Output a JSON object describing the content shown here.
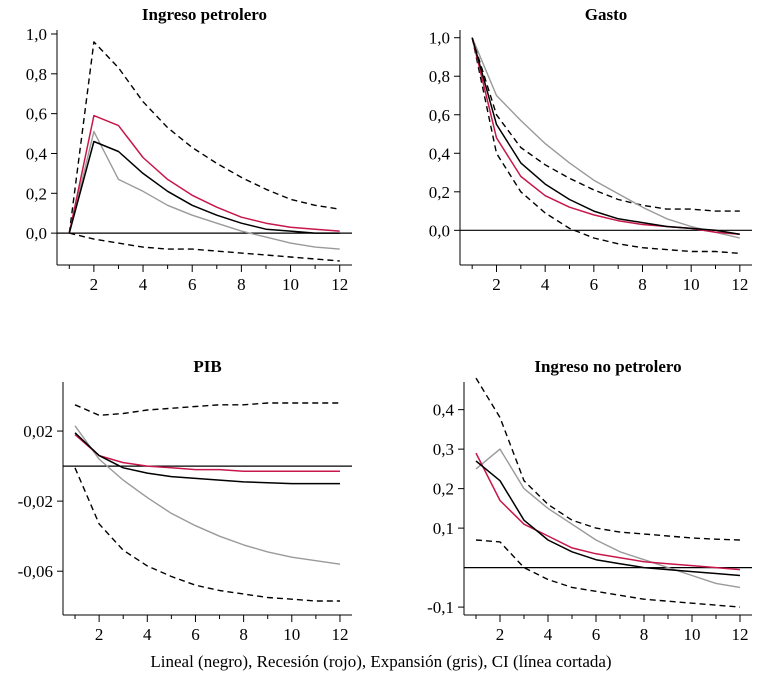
{
  "caption": "Lineal (negro), Recesión (rojo), Expansión (gris), CI (línea cortada)",
  "colors": {
    "lineal": "#000000",
    "recesion": "#c8174a",
    "expansion": "#9a9a9a",
    "ci": "#000000"
  },
  "chart_data": [
    {
      "type": "line",
      "title": "Ingreso petrolero",
      "xlim": [
        0.5,
        12.5
      ],
      "ylim": [
        -0.16,
        1.02
      ],
      "xticks": [
        2,
        4,
        6,
        8,
        10,
        12
      ],
      "yticks": [
        0.0,
        0.2,
        0.4,
        0.6,
        0.8,
        1.0
      ],
      "yticklabels": [
        "0,0",
        "0,2",
        "0,4",
        "0,6",
        "0,8",
        "1,0"
      ],
      "zero_line": true,
      "x": [
        1,
        2,
        3,
        4,
        5,
        6,
        7,
        8,
        9,
        10,
        11,
        12
      ],
      "series": [
        {
          "role": "ci_upper",
          "style": "dashed",
          "values": [
            0.0,
            0.96,
            0.83,
            0.66,
            0.53,
            0.43,
            0.35,
            0.28,
            0.22,
            0.17,
            0.14,
            0.12
          ]
        },
        {
          "role": "ci_lower",
          "style": "dashed",
          "values": [
            0.0,
            -0.03,
            -0.05,
            -0.07,
            -0.08,
            -0.08,
            -0.09,
            -0.1,
            -0.11,
            -0.12,
            -0.13,
            -0.14
          ]
        },
        {
          "role": "expansion",
          "values": [
            0.0,
            0.51,
            0.27,
            0.21,
            0.14,
            0.09,
            0.05,
            0.01,
            -0.02,
            -0.05,
            -0.07,
            -0.08
          ]
        },
        {
          "role": "recesion",
          "values": [
            0.0,
            0.59,
            0.54,
            0.38,
            0.27,
            0.19,
            0.13,
            0.08,
            0.05,
            0.03,
            0.02,
            0.01
          ]
        },
        {
          "role": "lineal",
          "values": [
            0.0,
            0.46,
            0.41,
            0.3,
            0.21,
            0.14,
            0.09,
            0.05,
            0.02,
            0.01,
            0.0,
            0.0
          ]
        }
      ]
    },
    {
      "type": "line",
      "title": "Gasto",
      "xlim": [
        0.5,
        12.5
      ],
      "ylim": [
        -0.18,
        1.04
      ],
      "xticks": [
        2,
        4,
        6,
        8,
        10,
        12
      ],
      "yticks": [
        0.0,
        0.2,
        0.4,
        0.6,
        0.8,
        1.0
      ],
      "yticklabels": [
        "0,0",
        "0,2",
        "0,4",
        "0,6",
        "0,8",
        "1,0"
      ],
      "zero_line": true,
      "x": [
        1,
        2,
        3,
        4,
        5,
        6,
        7,
        8,
        9,
        10,
        11,
        12
      ],
      "series": [
        {
          "role": "ci_upper",
          "style": "dashed",
          "values": [
            1.0,
            0.6,
            0.43,
            0.34,
            0.27,
            0.21,
            0.16,
            0.13,
            0.11,
            0.11,
            0.1,
            0.1
          ]
        },
        {
          "role": "ci_lower",
          "style": "dashed",
          "values": [
            1.0,
            0.4,
            0.2,
            0.09,
            0.01,
            -0.04,
            -0.07,
            -0.09,
            -0.1,
            -0.11,
            -0.11,
            -0.12
          ]
        },
        {
          "role": "expansion",
          "values": [
            1.0,
            0.7,
            0.57,
            0.45,
            0.35,
            0.26,
            0.19,
            0.12,
            0.06,
            0.02,
            -0.01,
            -0.04
          ]
        },
        {
          "role": "recesion",
          "values": [
            1.0,
            0.48,
            0.28,
            0.18,
            0.12,
            0.08,
            0.05,
            0.03,
            0.02,
            0.01,
            -0.01,
            -0.02
          ]
        },
        {
          "role": "lineal",
          "values": [
            1.0,
            0.55,
            0.35,
            0.24,
            0.16,
            0.1,
            0.06,
            0.04,
            0.02,
            0.01,
            0.0,
            -0.02
          ]
        }
      ]
    },
    {
      "type": "line",
      "title": "PIB",
      "xlim": [
        0.5,
        12.5
      ],
      "ylim": [
        -0.085,
        0.048
      ],
      "xticks": [
        2,
        4,
        6,
        8,
        10,
        12
      ],
      "yticks": [
        -0.06,
        -0.02,
        0.02
      ],
      "yticklabels": [
        "-0,06",
        "-0,02",
        "0,02"
      ],
      "zero_line": true,
      "x": [
        1,
        2,
        3,
        4,
        5,
        6,
        7,
        8,
        9,
        10,
        11,
        12
      ],
      "series": [
        {
          "role": "ci_upper",
          "style": "dashed",
          "values": [
            0.035,
            0.029,
            0.03,
            0.032,
            0.033,
            0.034,
            0.035,
            0.035,
            0.036,
            0.036,
            0.036,
            0.036
          ]
        },
        {
          "role": "ci_lower",
          "style": "dashed",
          "values": [
            -0.001,
            -0.033,
            -0.048,
            -0.057,
            -0.063,
            -0.068,
            -0.071,
            -0.073,
            -0.075,
            -0.076,
            -0.077,
            -0.077
          ]
        },
        {
          "role": "expansion",
          "values": [
            0.023,
            0.004,
            -0.008,
            -0.018,
            -0.027,
            -0.034,
            -0.04,
            -0.045,
            -0.049,
            -0.052,
            -0.054,
            -0.056
          ]
        },
        {
          "role": "recesion",
          "values": [
            0.018,
            0.006,
            0.002,
            0.0,
            -0.001,
            -0.002,
            -0.002,
            -0.003,
            -0.003,
            -0.003,
            -0.003,
            -0.003
          ]
        },
        {
          "role": "lineal",
          "values": [
            0.019,
            0.006,
            -0.001,
            -0.004,
            -0.006,
            -0.007,
            -0.008,
            -0.009,
            -0.0095,
            -0.01,
            -0.01,
            -0.01
          ]
        }
      ]
    },
    {
      "type": "line",
      "title": "Ingreso no petrolero",
      "xlim": [
        0.5,
        12.5
      ],
      "ylim": [
        -0.12,
        0.47
      ],
      "xticks": [
        2,
        4,
        6,
        8,
        10,
        12
      ],
      "yticks": [
        -0.1,
        0.1,
        0.2,
        0.3,
        0.4
      ],
      "yticklabels": [
        "-0,1",
        "0,1",
        "0,2",
        "0,3",
        "0,4"
      ],
      "zero_line": true,
      "x": [
        1,
        2,
        3,
        4,
        5,
        6,
        7,
        8,
        9,
        10,
        11,
        12
      ],
      "series": [
        {
          "role": "ci_upper",
          "style": "dashed",
          "values": [
            0.48,
            0.38,
            0.22,
            0.16,
            0.12,
            0.1,
            0.09,
            0.085,
            0.08,
            0.075,
            0.072,
            0.07
          ]
        },
        {
          "role": "ci_lower",
          "style": "dashed",
          "values": [
            0.07,
            0.065,
            0.0,
            -0.03,
            -0.05,
            -0.06,
            -0.07,
            -0.08,
            -0.085,
            -0.09,
            -0.095,
            -0.1
          ]
        },
        {
          "role": "expansion",
          "values": [
            0.25,
            0.3,
            0.2,
            0.15,
            0.11,
            0.07,
            0.04,
            0.02,
            0.0,
            -0.02,
            -0.04,
            -0.05
          ]
        },
        {
          "role": "recesion",
          "values": [
            0.29,
            0.17,
            0.11,
            0.08,
            0.05,
            0.035,
            0.025,
            0.015,
            0.01,
            0.005,
            0.0,
            -0.005
          ]
        },
        {
          "role": "lineal",
          "values": [
            0.27,
            0.22,
            0.12,
            0.07,
            0.04,
            0.02,
            0.01,
            0.0,
            -0.005,
            -0.01,
            -0.015,
            -0.02
          ]
        }
      ]
    }
  ]
}
